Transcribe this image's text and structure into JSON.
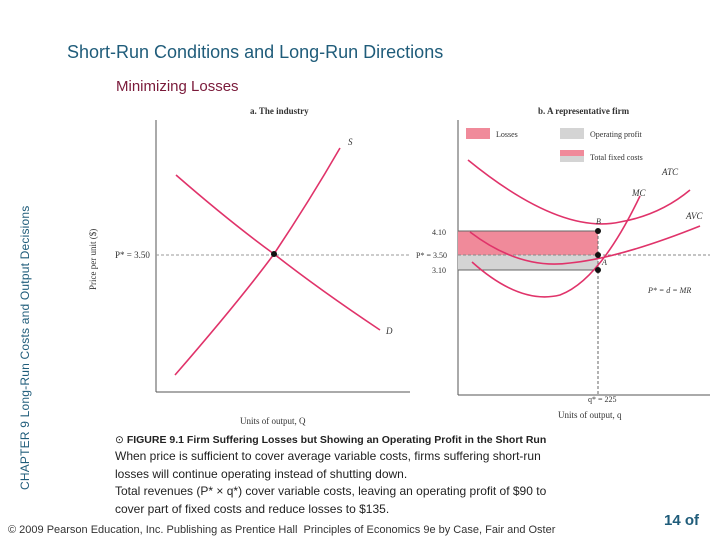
{
  "slide": {
    "title": "Short-Run Conditions and Long-Run Directions",
    "subtitle": "Minimizing Losses",
    "side_label": "CHAPTER 9  Long-Run Costs and Output Decisions",
    "copyright": "© 2009 Pearson Education, Inc. Publishing as Prentice Hall",
    "book": "Principles of Economics 9e by Case, Fair and Oster",
    "page": "14 of"
  },
  "panel_a": {
    "title": "a. The industry",
    "y_axis_label": "Price per unit ($)",
    "x_axis_label": "Units of output, Q",
    "price_label": "P* = 3.50",
    "supply_label": "S",
    "demand_label": "D"
  },
  "panel_b": {
    "title": "b. A representative firm",
    "x_axis_label": "Units of output, q",
    "quantity_label": "q* = 225",
    "price_label": "P* = 3.50",
    "tick_high": "4.10",
    "tick_low": "3.10",
    "demand_label": "P* = d = MR",
    "atc_label": "ATC",
    "mc_label": "MC",
    "avc_label": "AVC",
    "point_b": "B",
    "point_a": "A",
    "legend": [
      {
        "label": "Losses",
        "color": "#f08a9a"
      },
      {
        "label": "Operating profit",
        "color": "#d4d4d4"
      },
      {
        "label": "Total fixed costs",
        "color": "split"
      }
    ]
  },
  "colors": {
    "curve": "#e0336a",
    "axis": "#555555",
    "losses": "#f08a9a",
    "profit": "#d4d4d4",
    "title": "#1f5c7a",
    "subtitle": "#7a1a3a"
  },
  "caption": {
    "figure_title": "FIGURE 9.1  Firm Suffering Losses but Showing an Operating Profit in the Short Run",
    "lines": [
      "When price is sufficient to cover average variable costs, firms suffering short-run",
      "losses will continue operating instead of shutting down.",
      "Total revenues (P* × q*) cover variable costs, leaving an operating profit of $90 to",
      "cover part of fixed costs and reduce losses to $135."
    ]
  }
}
